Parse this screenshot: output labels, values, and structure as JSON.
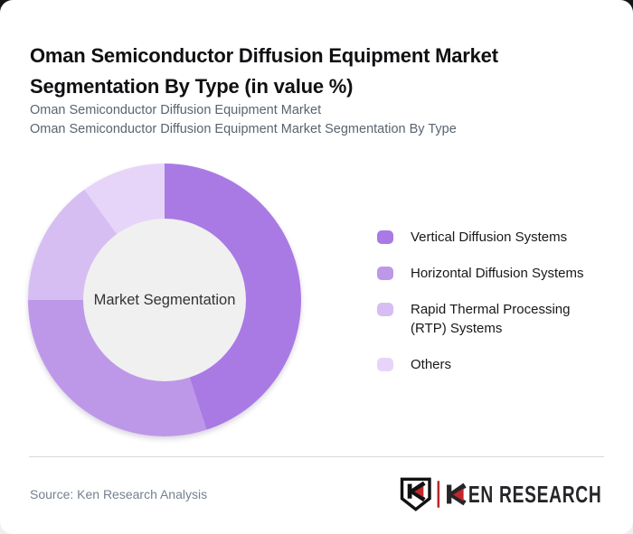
{
  "header": {
    "title": "Oman Semiconductor Diffusion Equipment Market Segmentation By Type (in value %)",
    "subtitle_line1": "Oman Semiconductor Diffusion Equipment Market",
    "subtitle_line2": "Oman Semiconductor Diffusion Equipment Market Segmentation By Type"
  },
  "chart_data": {
    "type": "pie",
    "variant": "donut",
    "title": "Oman Semiconductor Diffusion Equipment Market Segmentation By Type (in value %)",
    "units": "percent",
    "center_label": "Market Segmentation",
    "start_angle_deg": 0,
    "direction": "clockwise",
    "legend_position": "right",
    "segments": [
      {
        "label": "Vertical Diffusion Systems",
        "value": 45,
        "color": "#a97ae4"
      },
      {
        "label": "Horizontal Diffusion Systems",
        "value": 30,
        "color": "#bd98e8"
      },
      {
        "label": "Rapid Thermal Processing (RTP) Systems",
        "value": 15,
        "color": "#d6bef2"
      },
      {
        "label": "Others",
        "value": 10,
        "color": "#e6d5f8"
      }
    ],
    "center_circle_color": "#f0f0f0"
  },
  "footer": {
    "source": "Source: Ken Research Analysis",
    "logo": {
      "name": "ken-research-logo",
      "brand_text": "KEN RESEARCH",
      "text_after_k": "EN RESEARCH",
      "accent_color": "#c4262c",
      "text_color": "#26262a"
    }
  },
  "colors": {
    "card_background": "#ffffff",
    "title_text": "#101013",
    "subtitle_text": "#5a646f",
    "legend_text": "#17181b",
    "divider": "#d9d9d9",
    "source_text": "#75818f"
  }
}
